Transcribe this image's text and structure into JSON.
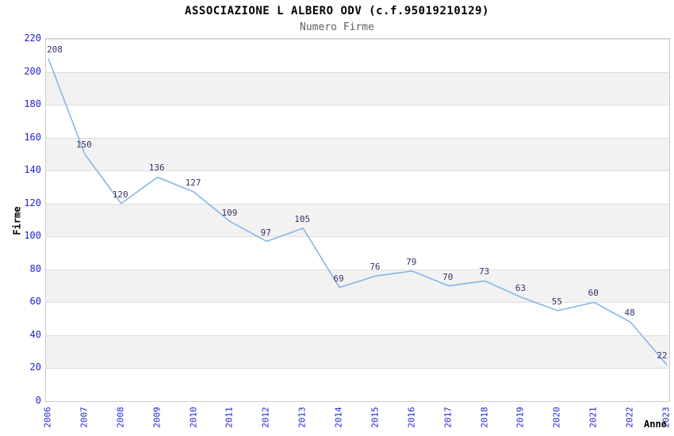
{
  "chart_data": {
    "type": "line",
    "title": "ASSOCIAZIONE L ALBERO ODV (c.f.95019210129)",
    "subtitle": "Numero Firme",
    "xlabel": "Anno",
    "ylabel": "Firme",
    "categories": [
      "2006",
      "2007",
      "2008",
      "2009",
      "2010",
      "2011",
      "2012",
      "2013",
      "2014",
      "2015",
      "2016",
      "2017",
      "2018",
      "2019",
      "2020",
      "2021",
      "2022",
      "2023"
    ],
    "values": [
      208,
      150,
      120,
      136,
      127,
      109,
      97,
      105,
      69,
      76,
      79,
      70,
      73,
      63,
      55,
      60,
      48,
      22
    ],
    "ylim": [
      0,
      220
    ],
    "ytick_step": 20,
    "grid": true,
    "legend_position": "none",
    "data_labels": true,
    "colors": {
      "line": "#82b1e6",
      "axis_tick_label": "#2222cc",
      "data_label": "#333366",
      "band": "#f2f2f2",
      "gridline": "#dddddd",
      "plot_border": "#cccccc",
      "title": "#000000",
      "subtitle": "#606060",
      "axis_title": "#000000"
    }
  }
}
